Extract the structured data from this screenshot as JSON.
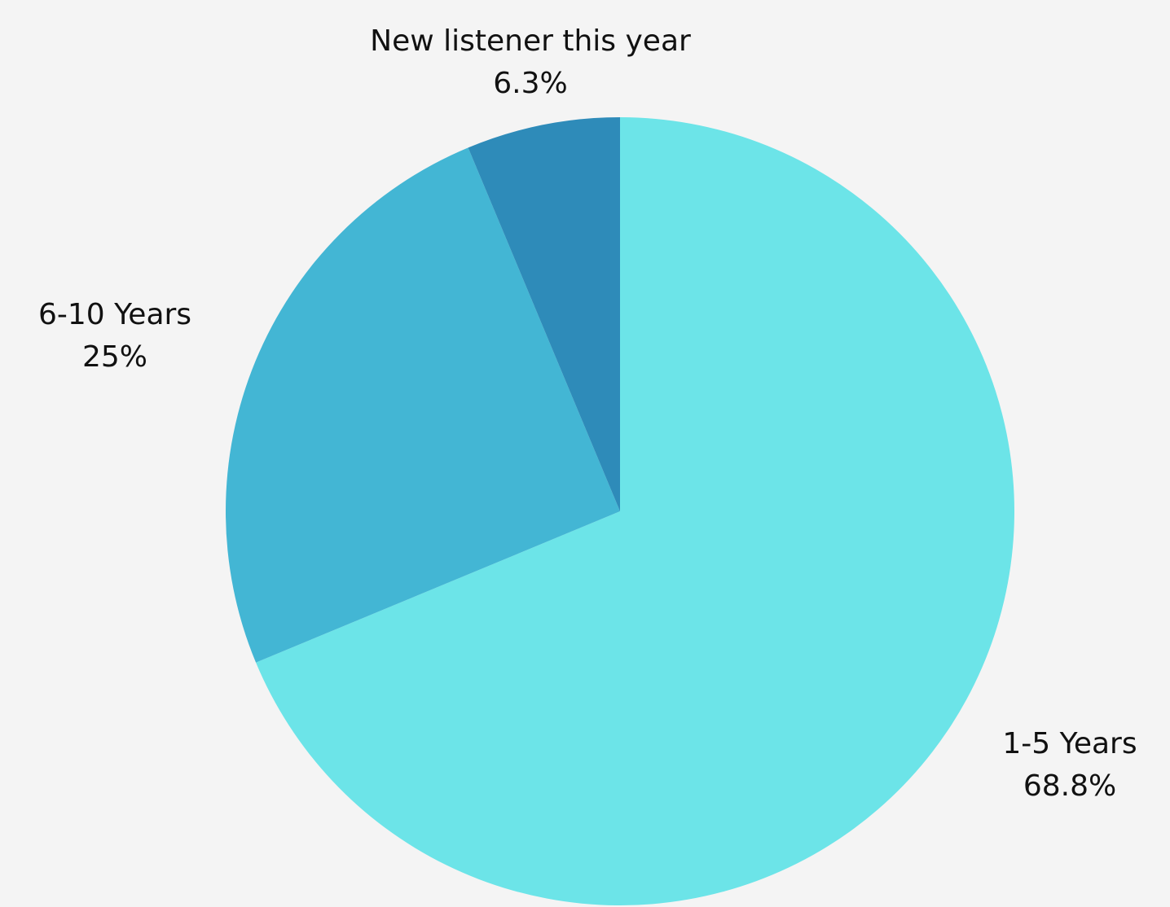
{
  "chart_data": {
    "type": "pie",
    "start": "12 o'clock",
    "direction": "clockwise",
    "slices": [
      {
        "label": "1-5 Years",
        "value": 68.8,
        "value_label": "68.8%",
        "color": "#6ce4e8"
      },
      {
        "label": "6-10 Years",
        "value": 25,
        "value_label": "25%",
        "color": "#43b6d4"
      },
      {
        "label": "New listener this year",
        "value": 6.3,
        "value_label": "6.3%",
        "color": "#2e8bb9"
      }
    ]
  }
}
